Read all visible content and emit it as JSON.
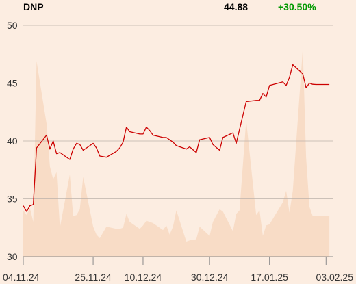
{
  "header": {
    "ticker": "DNP",
    "price": "44.88",
    "change": "+30.50%"
  },
  "colors": {
    "background": "#fcede1",
    "price_line": "#cc0000",
    "volume_area": "#f8dcc6",
    "change_positive": "#009900",
    "grid": "#bdb2aa",
    "tick_text": "#333333"
  },
  "chart_data": {
    "type": "line",
    "title": "",
    "xlabel": "",
    "ylabel": "",
    "ylim": [
      30,
      50
    ],
    "yticks": [
      30,
      35,
      40,
      45,
      50
    ],
    "grid": "horizontal",
    "x_range": [
      "2024-11-04",
      "2025-02-05"
    ],
    "x_tick_labels": [
      {
        "date": "2024-11-04",
        "label": "04.11.24"
      },
      {
        "date": "2024-11-25",
        "label": "25.11.24"
      },
      {
        "date": "2024-12-10",
        "label": "10.12.24"
      },
      {
        "date": "2024-12-30",
        "label": "30.12.24"
      },
      {
        "date": "2025-01-17",
        "label": "17.01.25"
      },
      {
        "date": "2025-02-03",
        "label": "03.02.25"
      }
    ],
    "series": [
      {
        "type": "line",
        "x": [
          "2024-11-04",
          "2024-11-05",
          "2024-11-06",
          "2024-11-07",
          "2024-11-08",
          "2024-11-11",
          "2024-11-12",
          "2024-11-13",
          "2024-11-14",
          "2024-11-15",
          "2024-11-18",
          "2024-11-19",
          "2024-11-20",
          "2024-11-21",
          "2024-11-22",
          "2024-11-25",
          "2024-11-26",
          "2024-11-27",
          "2024-11-29",
          "2024-12-02",
          "2024-12-03",
          "2024-12-04",
          "2024-12-05",
          "2024-12-06",
          "2024-12-09",
          "2024-12-10",
          "2024-12-11",
          "2024-12-12",
          "2024-12-13",
          "2024-12-16",
          "2024-12-17",
          "2024-12-18",
          "2024-12-19",
          "2024-12-20",
          "2024-12-23",
          "2024-12-24",
          "2024-12-26",
          "2024-12-27",
          "2024-12-30",
          "2024-12-31",
          "2025-01-02",
          "2025-01-03",
          "2025-01-06",
          "2025-01-07",
          "2025-01-08",
          "2025-01-10",
          "2025-01-13",
          "2025-01-14",
          "2025-01-15",
          "2025-01-16",
          "2025-01-17",
          "2025-01-21",
          "2025-01-22",
          "2025-01-23",
          "2025-01-24",
          "2025-01-27",
          "2025-01-28",
          "2025-01-29",
          "2025-01-30",
          "2025-01-31",
          "2025-02-03",
          "2025-02-04"
        ],
        "values": [
          34.4,
          33.9,
          34.4,
          34.5,
          39.4,
          40.5,
          39.3,
          40.0,
          38.9,
          39.0,
          38.4,
          39.3,
          39.8,
          39.7,
          39.2,
          39.8,
          39.4,
          38.7,
          38.6,
          39.1,
          39.4,
          39.9,
          41.2,
          40.8,
          40.6,
          40.6,
          41.2,
          40.9,
          40.5,
          40.3,
          40.3,
          40.1,
          39.9,
          39.6,
          39.3,
          39.5,
          39.0,
          40.1,
          40.3,
          39.7,
          39.2,
          40.3,
          40.7,
          39.8,
          41.0,
          43.4,
          43.5,
          43.5,
          44.1,
          43.8,
          44.8,
          45.1,
          44.8,
          45.5,
          46.6,
          45.8,
          44.6,
          45.0,
          44.9,
          44.88,
          44.88,
          44.88
        ]
      },
      {
        "type": "area",
        "unscaled": true,
        "x": [
          "2024-11-04",
          "2024-11-05",
          "2024-11-06",
          "2024-11-07",
          "2024-11-08",
          "2024-11-11",
          "2024-11-12",
          "2024-11-13",
          "2024-11-14",
          "2024-11-15",
          "2024-11-18",
          "2024-11-19",
          "2024-11-20",
          "2024-11-21",
          "2024-11-22",
          "2024-11-25",
          "2024-11-26",
          "2024-11-27",
          "2024-11-29",
          "2024-12-02",
          "2024-12-03",
          "2024-12-04",
          "2024-12-05",
          "2024-12-06",
          "2024-12-09",
          "2024-12-10",
          "2024-12-11",
          "2024-12-12",
          "2024-12-13",
          "2024-12-16",
          "2024-12-17",
          "2024-12-18",
          "2024-12-19",
          "2024-12-20",
          "2024-12-23",
          "2024-12-24",
          "2024-12-26",
          "2024-12-27",
          "2024-12-30",
          "2024-12-31",
          "2025-01-02",
          "2025-01-03",
          "2025-01-06",
          "2025-01-07",
          "2025-01-08",
          "2025-01-10",
          "2025-01-13",
          "2025-01-14",
          "2025-01-15",
          "2025-01-16",
          "2025-01-17",
          "2025-01-21",
          "2025-01-22",
          "2025-01-23",
          "2025-01-24",
          "2025-01-27",
          "2025-01-28",
          "2025-01-29",
          "2025-01-30",
          "2025-01-31",
          "2025-02-03",
          "2025-02-04"
        ],
        "values": [
          34.0,
          33.6,
          34.2,
          33.0,
          46.9,
          41.5,
          37.8,
          36.7,
          37.3,
          32.5,
          37.1,
          33.5,
          33.6,
          34.1,
          36.9,
          32.6,
          31.9,
          31.6,
          32.6,
          32.4,
          32.4,
          32.5,
          33.7,
          33.0,
          32.4,
          32.7,
          33.1,
          33.0,
          32.9,
          32.3,
          32.7,
          31.9,
          32.6,
          34.0,
          31.3,
          31.4,
          31.5,
          32.6,
          31.8,
          33.0,
          34.1,
          33.9,
          32.2,
          33.7,
          34.0,
          41.8,
          33.6,
          34.0,
          31.8,
          32.7,
          32.8,
          34.7,
          35.7,
          33.8,
          35.7,
          48.0,
          38.6,
          34.3,
          33.5,
          33.5,
          33.5,
          33.5
        ]
      }
    ]
  }
}
